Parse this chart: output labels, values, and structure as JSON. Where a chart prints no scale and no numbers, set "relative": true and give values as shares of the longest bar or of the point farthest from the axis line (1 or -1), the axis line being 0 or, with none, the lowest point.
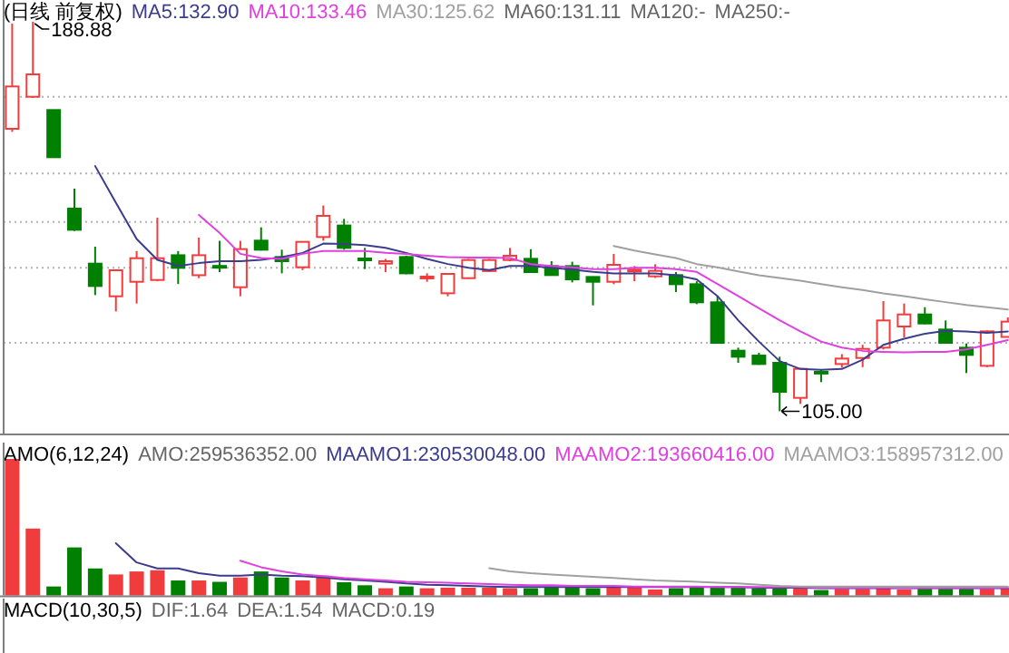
{
  "chart_data": [
    {
      "type": "candlestick",
      "title": "(日线 前复权)",
      "categories": [
        null,
        null,
        null,
        null,
        null,
        null,
        null,
        null,
        null,
        null,
        null,
        null,
        null,
        null,
        null,
        null,
        null,
        null,
        null,
        null,
        null,
        null,
        null,
        null,
        null,
        null,
        null,
        null,
        null,
        null,
        null,
        null,
        null,
        null,
        null,
        null,
        null,
        null,
        null,
        null,
        null,
        null,
        null,
        null,
        null,
        null,
        null,
        null,
        null
      ],
      "ohlc": [
        [
          165.83,
          188.5,
          165.18,
          174.95
        ],
        [
          172.73,
          188.88,
          172.5,
          177.55
        ],
        [
          169.87,
          169.87,
          159.71,
          159.71
        ],
        [
          148.64,
          152.94,
          143.82,
          144.08
        ],
        [
          136.79,
          140.44,
          130.02,
          131.97
        ],
        [
          129.76,
          135.5,
          126.5,
          135.36
        ],
        [
          132.88,
          139.5,
          128.2,
          137.96
        ],
        [
          133.27,
          146.69,
          133.0,
          137.96
        ],
        [
          138.6,
          139.5,
          132.4,
          135.88
        ],
        [
          134.3,
          142.4,
          133.66,
          138.6
        ],
        [
          136.3,
          141.7,
          134.97,
          136.0
        ],
        [
          131.71,
          141.7,
          129.76,
          139.92
        ],
        [
          141.74,
          144.6,
          139.6,
          139.79
        ],
        [
          138.22,
          139.79,
          134.7,
          137.31
        ],
        [
          136.01,
          141.6,
          135.4,
          141.48
        ],
        [
          142.52,
          149.3,
          141.74,
          147.08
        ],
        [
          145.0,
          146.43,
          139.79,
          140.18
        ],
        [
          137.9,
          140.18,
          135.62,
          137.7
        ],
        [
          136.79,
          137.8,
          134.97,
          137.31
        ],
        [
          138.22,
          138.5,
          134.5,
          134.7
        ],
        [
          133.8,
          134.7,
          132.88,
          134.0
        ],
        [
          130.41,
          134.7,
          129.76,
          134.58
        ],
        [
          133.66,
          137.8,
          133.5,
          137.57
        ],
        [
          135.2,
          137.8,
          135.0,
          137.57
        ],
        [
          137.57,
          140.18,
          137.3,
          138.48
        ],
        [
          137.83,
          139.9,
          134.9,
          134.97
        ],
        [
          136.27,
          137.31,
          134.2,
          134.32
        ],
        [
          136.27,
          137.2,
          132.75,
          133.4
        ],
        [
          133.92,
          134.0,
          127.8,
          132.88
        ],
        [
          132.88,
          138.87,
          132.36,
          136.53
        ],
        [
          135.3,
          136.27,
          133.0,
          135.5
        ],
        [
          134.06,
          136.66,
          133.7,
          135.23
        ],
        [
          134.32,
          134.97,
          130.67,
          132.36
        ],
        [
          132.36,
          133.0,
          128.07,
          128.46
        ],
        [
          128.46,
          129.76,
          119.6,
          119.73
        ],
        [
          118.04,
          118.69,
          115.43,
          116.74
        ],
        [
          116.99,
          117.6,
          115.0,
          115.17
        ],
        [
          115.43,
          116.74,
          105.0,
          109.18
        ],
        [
          107.88,
          114.3,
          106.58,
          114.13
        ],
        [
          113.5,
          113.87,
          111.27,
          113.4
        ],
        [
          115.17,
          117.3,
          114.4,
          116.34
        ],
        [
          116.47,
          119.3,
          114.5,
          118.43
        ],
        [
          118.69,
          128.72,
          118.3,
          124.55
        ],
        [
          123.25,
          128.2,
          120.9,
          125.85
        ],
        [
          125.85,
          127.4,
          123.7,
          123.9
        ],
        [
          122.6,
          124.55,
          119.6,
          119.73
        ],
        [
          118.69,
          119.6,
          113.22,
          117.13
        ],
        [
          114.78,
          122.4,
          114.5,
          122.2
        ],
        [
          121.0,
          125.2,
          120.9,
          124.3
        ]
      ],
      "colors": [
        "#f03c3c",
        "#f03c3c",
        "#008000",
        "#008000",
        "#008000",
        "#f03c3c",
        "#f03c3c",
        "#f03c3c",
        "#008000",
        "#f03c3c",
        "#008000",
        "#f03c3c",
        "#008000",
        "#008000",
        "#f03c3c",
        "#f03c3c",
        "#008000",
        "#008000",
        "#f03c3c",
        "#008000",
        "#f03c3c",
        "#f03c3c",
        "#f03c3c",
        "#f03c3c",
        "#f03c3c",
        "#008000",
        "#008000",
        "#008000",
        "#008000",
        "#f03c3c",
        "#f03c3c",
        "#f03c3c",
        "#008000",
        "#008000",
        "#008000",
        "#008000",
        "#008000",
        "#008000",
        "#f03c3c",
        "#008000",
        "#f03c3c",
        "#f03c3c",
        "#f03c3c",
        "#f03c3c",
        "#008000",
        "#008000",
        "#008000",
        "#f03c3c",
        "#f03c3c"
      ],
      "series": [
        {
          "name": "MA5:132.90",
          "type": "line",
          "color": "#3c3c8c",
          "values": [
            null,
            null,
            null,
            null,
            157.8,
            149.9,
            142.1,
            137.6,
            136.3,
            136.9,
            137.3,
            137.3,
            137.6,
            138.2,
            139.1,
            141.1,
            141.0,
            140.8,
            140.2,
            139.1,
            137.8,
            136.7,
            135.9,
            135.4,
            136.3,
            136.3,
            135.9,
            135.5,
            135.0,
            134.7,
            134.7,
            134.7,
            134.3,
            133.4,
            129.8,
            124.6,
            120.0,
            115.8,
            114.1,
            113.9,
            114.1,
            116.1,
            119.3,
            120.6,
            121.7,
            122.3,
            122.2,
            121.9,
            122.2
          ]
        },
        {
          "name": "MA10:133.46",
          "type": "line",
          "color": "#e040e0",
          "values": [
            null,
            null,
            null,
            null,
            null,
            null,
            null,
            null,
            null,
            147.3,
            143.4,
            138.9,
            138.0,
            137.8,
            138.9,
            139.5,
            139.5,
            139.5,
            139.1,
            138.9,
            138.5,
            138.2,
            138.1,
            138.1,
            138.0,
            136.7,
            136.3,
            136.0,
            135.6,
            135.6,
            135.9,
            135.9,
            135.6,
            135.0,
            132.4,
            129.8,
            127.2,
            124.6,
            122.2,
            120.0,
            118.7,
            118.0,
            117.8,
            117.7,
            117.8,
            117.8,
            118.3,
            119.3,
            120.3
          ]
        },
        {
          "name": "MA30:125.62",
          "type": "line",
          "color": "#a0a0a0",
          "values": [
            null,
            null,
            null,
            null,
            null,
            null,
            null,
            null,
            null,
            null,
            null,
            null,
            null,
            null,
            null,
            null,
            null,
            null,
            null,
            null,
            null,
            null,
            null,
            null,
            null,
            null,
            null,
            null,
            null,
            140.6,
            139.6,
            138.8,
            138.0,
            136.7,
            136.0,
            135.1,
            134.3,
            133.7,
            133.1,
            132.4,
            131.7,
            131.1,
            130.4,
            129.8,
            129.1,
            128.5,
            127.9,
            127.4,
            126.9
          ]
        }
      ],
      "annotations": [
        "MA60:131.11",
        "MA120:-",
        "MA250:-",
        "188.88",
        "105.00"
      ],
      "ylim": [
        100.2,
        193.57
      ],
      "yticks": [
        {
          "value": 172.73,
          "label": null
        },
        {
          "value": 156.19,
          "label": null
        },
        {
          "value": 145.78,
          "label": null
        },
        {
          "value": 135.88,
          "label": null
        },
        {
          "value": 119.73,
          "label": null
        }
      ],
      "grid": "y"
    },
    {
      "type": "bar",
      "title": "AMO(6,12,24)",
      "relative": true,
      "categories": [
        null,
        null,
        null,
        null,
        null,
        null,
        null,
        null,
        null,
        null,
        null,
        null,
        null,
        null,
        null,
        null,
        null,
        null,
        null,
        null,
        null,
        null,
        null,
        null,
        null,
        null,
        null,
        null,
        null,
        null,
        null,
        null,
        null,
        null,
        null,
        null,
        null,
        null,
        null,
        null,
        null,
        null,
        null,
        null,
        null,
        null,
        null,
        null,
        null
      ],
      "annotations": [
        "AMO:259536352.00"
      ],
      "series": [
        {
          "type": "bar",
          "values": [
            1,
            0.49,
            0.066,
            0.352,
            0.198,
            0.154,
            0.176,
            0.185,
            0.11,
            0.11,
            0.1,
            0.132,
            0.176,
            0.132,
            0.11,
            0.145,
            0.097,
            0.075,
            0.053,
            0.066,
            0.053,
            0.057,
            0.057,
            0.057,
            0.053,
            0.053,
            0.057,
            0.057,
            0.053,
            0.062,
            0.057,
            0.044,
            0.053,
            0.057,
            0.062,
            0.057,
            0.053,
            0.062,
            0.057,
            0.04,
            0.048,
            0.048,
            0.066,
            0.044,
            0.048,
            0.048,
            0.048,
            0.048,
            0.053
          ],
          "colors": [
            "#f03c3c",
            "#f03c3c",
            "#008000",
            "#008000",
            "#008000",
            "#f03c3c",
            "#f03c3c",
            "#f03c3c",
            "#008000",
            "#f03c3c",
            "#008000",
            "#f03c3c",
            "#008000",
            "#008000",
            "#f03c3c",
            "#f03c3c",
            "#008000",
            "#008000",
            "#f03c3c",
            "#008000",
            "#f03c3c",
            "#f03c3c",
            "#f03c3c",
            "#f03c3c",
            "#f03c3c",
            "#008000",
            "#008000",
            "#008000",
            "#008000",
            "#f03c3c",
            "#f03c3c",
            "#f03c3c",
            "#008000",
            "#008000",
            "#008000",
            "#008000",
            "#008000",
            "#008000",
            "#f03c3c",
            "#008000",
            "#f03c3c",
            "#f03c3c",
            "#f03c3c",
            "#f03c3c",
            "#008000",
            "#008000",
            "#008000",
            "#f03c3c",
            "#f03c3c"
          ]
        },
        {
          "name": "MAAMO1:230530048.00",
          "type": "line",
          "color": "#3c3c8c",
          "values": [
            null,
            null,
            null,
            null,
            null,
            0.383,
            0.242,
            0.198,
            0.198,
            0.163,
            0.145,
            0.145,
            0.154,
            0.145,
            0.141,
            0.132,
            0.119,
            0.11,
            0.101,
            0.088,
            0.079,
            0.075,
            0.07,
            0.066,
            0.062,
            0.062,
            0.062,
            0.062,
            0.062,
            0.062,
            0.062,
            0.062,
            0.062,
            0.062,
            0.062,
            0.062,
            0.057,
            0.057,
            0.057,
            0.053,
            0.053,
            0.053,
            0.053,
            0.053,
            0.053,
            0.053,
            0.053,
            0.053,
            0.053
          ]
        },
        {
          "name": "MAAMO2:193660416.00",
          "type": "line",
          "color": "#e040e0",
          "values": [
            null,
            null,
            null,
            null,
            null,
            null,
            null,
            null,
            null,
            null,
            null,
            0.255,
            0.207,
            0.176,
            0.154,
            0.141,
            0.128,
            0.119,
            0.11,
            0.101,
            0.097,
            0.093,
            0.088,
            0.084,
            0.079,
            0.075,
            0.075,
            0.07,
            0.07,
            0.07,
            0.066,
            0.066,
            0.066,
            0.066,
            0.062,
            0.062,
            0.062,
            0.062,
            0.062,
            0.057,
            0.057,
            0.057,
            0.057,
            0.057,
            0.057,
            0.057,
            0.057,
            0.057,
            0.057
          ]
        },
        {
          "name": "MAAMO3:158957312.00",
          "type": "line",
          "color": "#a0a0a0",
          "values": [
            null,
            null,
            null,
            null,
            null,
            null,
            null,
            null,
            null,
            null,
            null,
            null,
            null,
            null,
            null,
            null,
            null,
            null,
            null,
            null,
            null,
            null,
            null,
            0.2,
            0.176,
            0.163,
            0.154,
            0.145,
            0.137,
            0.128,
            0.119,
            0.11,
            0.106,
            0.101,
            0.093,
            0.088,
            0.079,
            0.07,
            0.066,
            0.066,
            0.066,
            0.066,
            0.066,
            0.066,
            0.066,
            0.066,
            0.066,
            0.066,
            0.066
          ]
        }
      ]
    },
    {
      "type": "other",
      "title": "MACD(10,30,5)",
      "annotations": [
        "DIF:1.64",
        "DEA:1.54",
        "MACD:0.19"
      ]
    }
  ]
}
